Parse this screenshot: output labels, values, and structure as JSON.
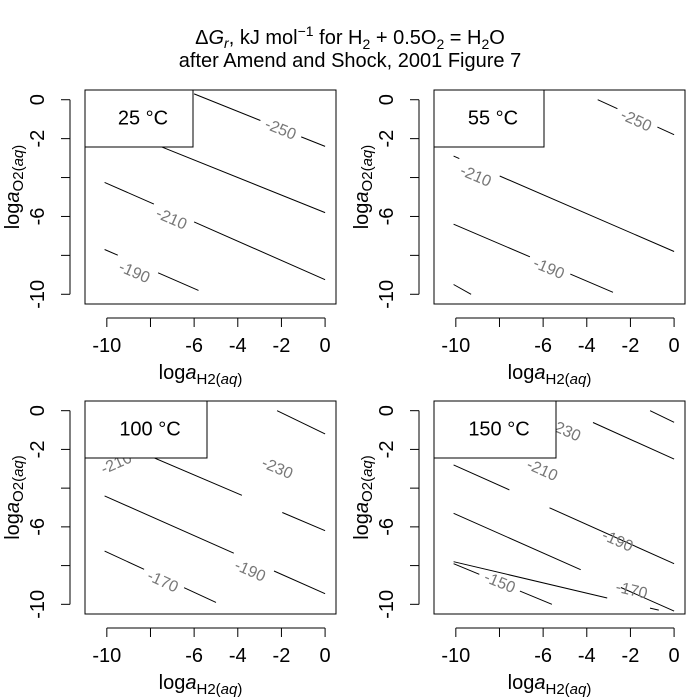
{
  "title": {
    "line1": {
      "delta": "Δ",
      "G": "G",
      "sub_r": "r",
      "units": ", kJ mol",
      "units_sup": "−1",
      "for_text": "  for  H",
      "h2_sub": "2",
      "plus": " + 0.5O",
      "o2_sub": "2",
      "eq": " = H",
      "h2o_sub": "2",
      "o_end": "O"
    },
    "line2": "after Amend and Shock, 2001 Figure 7"
  },
  "axis_labels": {
    "x_prefix": "log",
    "x_a": "a",
    "x_sub": "H2(",
    "x_sub_aq": "aq",
    "x_sub_close": ")",
    "y_prefix": "log",
    "y_a": "a",
    "y_sub": "O2(",
    "y_sub_aq": "aq",
    "y_sub_close": ")"
  },
  "chart_data": [
    {
      "type": "line",
      "subtype": "contour",
      "temperature_label": "25 °C",
      "xlim": [
        -11,
        0.5
      ],
      "ylim": [
        -10.5,
        0.5
      ],
      "x_ticks": [
        -10,
        -8,
        -6,
        -4,
        -2,
        0
      ],
      "x_tick_labels": [
        "-10",
        "",
        "-6",
        "-4",
        "-2",
        "0"
      ],
      "y_ticks": [
        0,
        -2,
        -4,
        -6,
        -8,
        -10
      ],
      "y_tick_labels": [
        "0",
        "-2",
        "",
        "-6",
        "",
        "-10"
      ],
      "contours": [
        {
          "x": [
            -6,
            0
          ],
          "y": [
            0.3,
            -2.4
          ],
          "label": "-250",
          "label_at": [
            -2.05,
            -1.55
          ]
        },
        {
          "x": [
            -10.1,
            0
          ],
          "y": [
            -1.25,
            -5.8
          ],
          "label": ""
        },
        {
          "x": [
            -10.1,
            0
          ],
          "y": [
            -4.25,
            -9.25
          ],
          "label": "-210",
          "label_at": [
            -7.05,
            -6.15
          ]
        },
        {
          "x": [
            -10.1,
            -5.8
          ],
          "y": [
            -7.7,
            -9.8
          ],
          "label": "-190",
          "label_at": [
            -8.75,
            -8.9
          ]
        }
      ]
    },
    {
      "type": "line",
      "subtype": "contour",
      "temperature_label": "55 °C",
      "xlim": [
        -11,
        0.5
      ],
      "ylim": [
        -10.5,
        0.5
      ],
      "x_ticks": [
        -10,
        -8,
        -6,
        -4,
        -2,
        0
      ],
      "x_tick_labels": [
        "-10",
        "",
        "-6",
        "-4",
        "-2",
        "0"
      ],
      "y_ticks": [
        0,
        -2,
        -4,
        -6,
        -8,
        -10
      ],
      "y_tick_labels": [
        "0",
        "-2",
        "",
        "-6",
        "",
        "-10"
      ],
      "contours": [
        {
          "x": [
            -3.5,
            0
          ],
          "y": [
            0,
            -1.8
          ],
          "label": "-250",
          "label_at": [
            -1.75,
            -1.1
          ]
        },
        {
          "x": [
            -10.1,
            0
          ],
          "y": [
            -2.9,
            -7.8
          ],
          "label": "-210",
          "label_at": [
            -9.1,
            -3.95
          ]
        },
        {
          "x": [
            -10.1,
            -2.8
          ],
          "y": [
            -6.4,
            -9.9
          ],
          "label": "-190",
          "label_at": [
            -5.75,
            -8.7
          ]
        },
        {
          "x": [
            -10.1,
            -9.3
          ],
          "y": [
            -9.5,
            -10
          ],
          "label": ""
        }
      ]
    },
    {
      "type": "line",
      "subtype": "contour",
      "temperature_label": "100 °C",
      "xlim": [
        -11,
        0.5
      ],
      "ylim": [
        -10.5,
        0.5
      ],
      "x_ticks": [
        -10,
        -8,
        -6,
        -4,
        -2,
        0
      ],
      "x_tick_labels": [
        "-10",
        "",
        "-6",
        "-4",
        "-2",
        "0"
      ],
      "y_ticks": [
        0,
        -2,
        -4,
        -6,
        -8,
        -10
      ],
      "y_tick_labels": [
        "0",
        "-2",
        "",
        "-6",
        "",
        "-10"
      ],
      "contours": [
        {
          "x": [
            -2.2,
            0
          ],
          "y": [
            0,
            -1.2
          ],
          "label": ""
        },
        {
          "x": [
            -10.1,
            0
          ],
          "y": [
            -1.35,
            -6.2
          ],
          "label": "-230",
          "label_at": [
            -2.2,
            -3.0
          ]
        },
        {
          "x": [
            -10.1,
            0
          ],
          "y": [
            -4.4,
            -9.45
          ],
          "label": "-190",
          "label_at": [
            -3.45,
            -8.3
          ]
        },
        {
          "x": [
            -10.1,
            -5.0
          ],
          "y": [
            -7.25,
            -9.9
          ],
          "label": "-170",
          "label_at": [
            -7.45,
            -8.85
          ]
        }
      ],
      "extra_labels": [
        {
          "text": "-210",
          "at": [
            -9.55,
            -2.75
          ]
        }
      ]
    },
    {
      "type": "line",
      "subtype": "contour",
      "temperature_label": "150 °C",
      "xlim": [
        -11,
        0.5
      ],
      "ylim": [
        -10.5,
        0.5
      ],
      "x_ticks": [
        -10,
        -8,
        -6,
        -4,
        -2,
        0
      ],
      "x_tick_labels": [
        "-10",
        "",
        "-6",
        "-4",
        "-2",
        "0"
      ],
      "y_ticks": [
        0,
        -2,
        -4,
        -6,
        -8,
        -10
      ],
      "y_tick_labels": [
        "0",
        "-2",
        "",
        "-6",
        "",
        "-10"
      ],
      "contours": [
        {
          "x": [
            -1.1,
            0
          ],
          "y": [
            0,
            -0.6
          ],
          "label": ""
        },
        {
          "x": [
            -5.5,
            0
          ],
          "y": [
            0.3,
            -2.5
          ],
          "label": "-230",
          "label_at": [
            -5.0,
            -1.05
          ]
        },
        {
          "x": [
            -10.1,
            0
          ],
          "y": [
            -2.8,
            -7.9
          ],
          "label": "-210",
          "label_at": [
            -6.05,
            -3.1
          ]
        },
        {
          "x": [
            -10.1,
            0
          ],
          "y": [
            -5.3,
            -10.35
          ],
          "label": "-190",
          "label_at": [
            -2.6,
            -6.75
          ]
        },
        {
          "x": [
            -10.1,
            -0.7
          ],
          "y": [
            -7.8,
            -10.3
          ],
          "label": "-170",
          "label_at": [
            -1.95,
            -9.3
          ]
        },
        {
          "x": [
            -10.1,
            -5.6
          ],
          "y": [
            -7.9,
            -10.0
          ],
          "label": "-150",
          "label_at": [
            -8.0,
            -8.9
          ]
        }
      ]
    }
  ]
}
